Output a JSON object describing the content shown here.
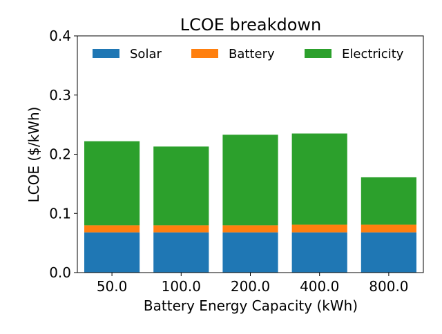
{
  "chart_data": {
    "type": "bar",
    "stacked": true,
    "title": "LCOE breakdown",
    "xlabel": "Battery Energy Capacity (kWh)",
    "ylabel": "LCOE ($/kWh)",
    "categories": [
      "50.0",
      "100.0",
      "200.0",
      "400.0",
      "800.0"
    ],
    "ylim": [
      0,
      0.4
    ],
    "yticks": [
      "0.0",
      "0.1",
      "0.2",
      "0.3",
      "0.4"
    ],
    "grid": false,
    "legend_position": "top",
    "series": [
      {
        "name": "Solar",
        "color": "#1f77b4",
        "values": [
          0.068,
          0.068,
          0.068,
          0.068,
          0.068
        ]
      },
      {
        "name": "Battery",
        "color": "#ff7f0e",
        "values": [
          0.012,
          0.012,
          0.012,
          0.013,
          0.013
        ]
      },
      {
        "name": "Electricity",
        "color": "#2ca02c",
        "values": [
          0.142,
          0.133,
          0.153,
          0.154,
          0.08
        ]
      }
    ]
  }
}
